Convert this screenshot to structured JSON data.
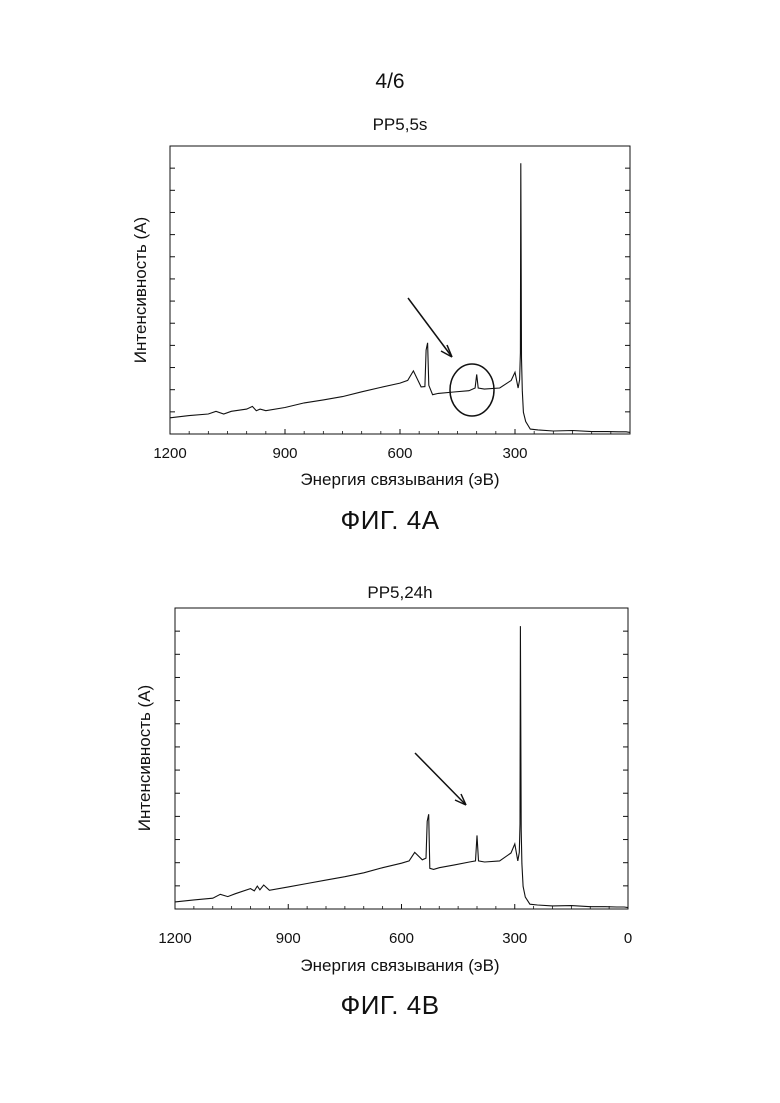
{
  "page": {
    "sheet_number": "4/6"
  },
  "figures": [
    {
      "caption": "ФИГ. 4A"
    },
    {
      "caption": "ФИГ. 4B"
    }
  ],
  "chart_data": [
    {
      "type": "line",
      "title": "PP5,5s",
      "xlabel": "Энергия связывания (эВ)",
      "ylabel": "Интенсивность (A)",
      "xlim": [
        1200,
        0
      ],
      "x_reversed": true,
      "ylim": [
        0,
        100
      ],
      "xticks": [
        1200,
        900,
        600,
        300
      ],
      "xtick_labels": [
        "1200",
        "900",
        "600",
        "300"
      ],
      "y_tick_count": 13,
      "grid": false,
      "annotations": [
        "arrow pointing to small peak near 400 eV",
        "circle around small peak near 400 eV"
      ],
      "series": [
        {
          "values_note": "approximate",
          "x": [
            1200,
            1150,
            1100,
            1080,
            1060,
            1040,
            1000,
            985,
            975,
            965,
            950,
            900,
            850,
            800,
            750,
            700,
            650,
            600,
            580,
            565,
            545,
            535,
            532,
            528,
            525,
            515,
            500,
            460,
            420,
            404,
            400,
            396,
            380,
            340,
            310,
            300,
            292,
            288,
            286,
            285,
            283,
            281,
            278,
            272,
            260,
            240,
            200,
            150,
            100,
            60,
            30,
            10,
            0
          ],
          "y": [
            6,
            6.8,
            7.4,
            8.4,
            7.4,
            8.4,
            9.2,
            10.2,
            8.6,
            9.2,
            8.6,
            9.8,
            11.5,
            12.6,
            13.8,
            15.6,
            17.2,
            18.8,
            19.8,
            23.3,
            17.4,
            17.5,
            31,
            33.7,
            18,
            14.5,
            15,
            15.5,
            16,
            17,
            22,
            17,
            16.6,
            17,
            19.8,
            22.8,
            17,
            20,
            30,
            100,
            28,
            16,
            8,
            4.6,
            1.8,
            1.5,
            1.1,
            1.3,
            0.9,
            0.9,
            0.8,
            0.8,
            0.6
          ]
        }
      ]
    },
    {
      "type": "line",
      "title": "PP5,24h",
      "xlabel": "Энергия связывания (эВ)",
      "ylabel": "Интенсивность (A)",
      "xlim": [
        1200,
        0
      ],
      "x_reversed": true,
      "ylim": [
        0,
        100
      ],
      "xticks": [
        1200,
        900,
        600,
        300,
        0
      ],
      "xtick_labels": [
        "1200",
        "900",
        "600",
        "300",
        "0"
      ],
      "y_tick_count": 13,
      "grid": false,
      "annotations": [
        "arrow pointing to peak near 400 eV"
      ],
      "series": [
        {
          "values_note": "approximate",
          "x": [
            1200,
            1150,
            1100,
            1080,
            1060,
            1040,
            1000,
            990,
            982,
            975,
            965,
            950,
            900,
            850,
            800,
            750,
            700,
            650,
            600,
            580,
            565,
            545,
            535,
            532,
            528,
            525,
            515,
            500,
            460,
            420,
            404,
            400,
            396,
            380,
            340,
            310,
            300,
            292,
            288,
            286,
            285,
            283,
            281,
            278,
            272,
            260,
            240,
            200,
            150,
            100,
            60,
            30,
            10,
            0
          ],
          "y": [
            2.5,
            3.2,
            3.8,
            5.2,
            4.4,
            5.4,
            7.2,
            6.4,
            8.1,
            6.8,
            8.5,
            6.6,
            7.8,
            9,
            10.2,
            11.4,
            12.8,
            14.6,
            16.2,
            17,
            20,
            17.4,
            18,
            31,
            33.5,
            14.4,
            14,
            14.6,
            15.6,
            16.6,
            17,
            26,
            17,
            16.6,
            17,
            19.8,
            23,
            17,
            20,
            30,
            100,
            28,
            16,
            8,
            4.2,
            1.7,
            1.4,
            1.1,
            1.2,
            0.8,
            0.8,
            0.7,
            0.7,
            0.5
          ]
        }
      ]
    }
  ]
}
